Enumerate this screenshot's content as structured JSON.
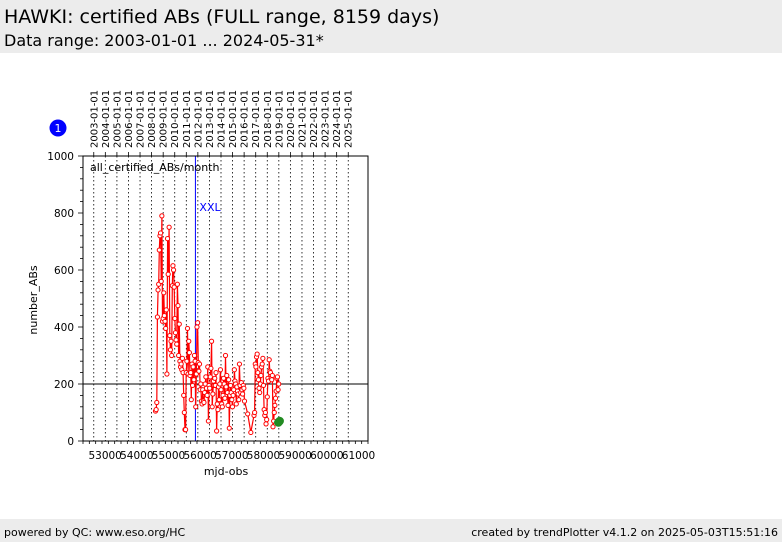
{
  "page": {
    "title": "HAWKI: certified ABs (FULL range, 8159 days)",
    "subtitle": "Data range: 2003-01-01 ... 2024-05-31*",
    "footer_left": "powered by QC: www.eso.org/HC",
    "footer_right": "created by trendPlotter v4.1.2 on 2025-05-03T15:51:16"
  },
  "colors": {
    "series": "#ff0000",
    "latest": "#228b22",
    "marker_line": "#0000ff",
    "reference_line": "#000000",
    "badge": "#0000ff"
  },
  "chart_data": {
    "type": "line",
    "xlabel": "mjd-obs",
    "ylabel": "number_ABs",
    "xlim": [
      52300,
      61300
    ],
    "ylim": [
      0,
      1000
    ],
    "x_ticks": [
      53000,
      54000,
      55000,
      56000,
      57000,
      58000,
      59000,
      60000,
      61000
    ],
    "y_ticks": [
      0,
      200,
      400,
      600,
      800,
      1000
    ],
    "grid": "vertical dotted lines at year boundaries",
    "top_axis": {
      "labels": [
        "2003-01-01",
        "2004-01-01",
        "2005-01-01",
        "2006-01-01",
        "2007-01-01",
        "2008-01-01",
        "2009-01-01",
        "2010-01-01",
        "2011-01-01",
        "2012-01-01",
        "2013-01-01",
        "2014-01-01",
        "2015-01-01",
        "2016-01-01",
        "2017-01-01",
        "2018-01-01",
        "2019-01-01",
        "2020-01-01",
        "2021-01-01",
        "2022-01-01",
        "2023-01-01",
        "2024-01-01",
        "2025-01-01"
      ],
      "mjd": [
        52640,
        53005,
        53371,
        53736,
        54101,
        54466,
        54832,
        55197,
        55562,
        55927,
        56293,
        56658,
        57023,
        57388,
        57754,
        58119,
        58484,
        58849,
        59215,
        59580,
        59945,
        60310,
        60676
      ]
    },
    "badge_label": "1",
    "series_label": "all_certified_ABs/month",
    "reference_line": 200,
    "event_marker": {
      "x": 55850,
      "label": "XXL"
    },
    "points": [
      [
        54590,
        105
      ],
      [
        54610,
        110
      ],
      [
        54630,
        135
      ],
      [
        54650,
        435
      ],
      [
        54670,
        530
      ],
      [
        54690,
        550
      ],
      [
        54710,
        670
      ],
      [
        54730,
        720
      ],
      [
        54750,
        730
      ],
      [
        54770,
        560
      ],
      [
        54790,
        790
      ],
      [
        54810,
        420
      ],
      [
        54830,
        430
      ],
      [
        54850,
        520
      ],
      [
        54870,
        440
      ],
      [
        54890,
        420
      ],
      [
        54910,
        395
      ],
      [
        54930,
        460
      ],
      [
        54950,
        235
      ],
      [
        54970,
        710
      ],
      [
        54990,
        585
      ],
      [
        55020,
        750
      ],
      [
        55040,
        370
      ],
      [
        55060,
        320
      ],
      [
        55080,
        350
      ],
      [
        55100,
        300
      ],
      [
        55120,
        545
      ],
      [
        55140,
        615
      ],
      [
        55160,
        600
      ],
      [
        55180,
        540
      ],
      [
        55200,
        430
      ],
      [
        55220,
        380
      ],
      [
        55240,
        355
      ],
      [
        55260,
        340
      ],
      [
        55280,
        550
      ],
      [
        55300,
        475
      ],
      [
        55320,
        300
      ],
      [
        55340,
        410
      ],
      [
        55360,
        280
      ],
      [
        55380,
        260
      ],
      [
        55400,
        270
      ],
      [
        55420,
        250
      ],
      [
        55440,
        290
      ],
      [
        55460,
        240
      ],
      [
        55480,
        160
      ],
      [
        55500,
        100
      ],
      [
        55520,
        40
      ],
      [
        55540,
        40
      ],
      [
        55560,
        240
      ],
      [
        55580,
        280
      ],
      [
        55600,
        395
      ],
      [
        55620,
        235
      ],
      [
        55640,
        350
      ],
      [
        55660,
        310
      ],
      [
        55680,
        230
      ],
      [
        55700,
        240
      ],
      [
        55720,
        145
      ],
      [
        55740,
        270
      ],
      [
        55760,
        195
      ],
      [
        55780,
        260
      ],
      [
        55800,
        215
      ],
      [
        55820,
        300
      ],
      [
        55840,
        280
      ],
      [
        55860,
        120
      ],
      [
        55880,
        235
      ],
      [
        55900,
        400
      ],
      [
        55920,
        415
      ],
      [
        55940,
        275
      ],
      [
        55960,
        245
      ],
      [
        55980,
        270
      ],
      [
        56000,
        180
      ],
      [
        56020,
        200
      ],
      [
        56040,
        140
      ],
      [
        56060,
        130
      ],
      [
        56080,
        180
      ],
      [
        56100,
        140
      ],
      [
        56120,
        135
      ],
      [
        56140,
        170
      ],
      [
        56160,
        200
      ],
      [
        56180,
        225
      ],
      [
        56200,
        185
      ],
      [
        56220,
        160
      ],
      [
        56240,
        260
      ],
      [
        56260,
        70
      ],
      [
        56280,
        195
      ],
      [
        56300,
        185
      ],
      [
        56320,
        225
      ],
      [
        56340,
        255
      ],
      [
        56360,
        350
      ],
      [
        56380,
        120
      ],
      [
        56400,
        165
      ],
      [
        56420,
        210
      ],
      [
        56440,
        195
      ],
      [
        56460,
        220
      ],
      [
        56480,
        195
      ],
      [
        56500,
        240
      ],
      [
        56520,
        35
      ],
      [
        56540,
        130
      ],
      [
        56560,
        110
      ],
      [
        56580,
        190
      ],
      [
        56600,
        145
      ],
      [
        56620,
        200
      ],
      [
        56640,
        250
      ],
      [
        56660,
        180
      ],
      [
        56680,
        130
      ],
      [
        56700,
        120
      ],
      [
        56720,
        160
      ],
      [
        56740,
        220
      ],
      [
        56760,
        200
      ],
      [
        56780,
        150
      ],
      [
        56800,
        300
      ],
      [
        56820,
        190
      ],
      [
        56840,
        230
      ],
      [
        56860,
        170
      ],
      [
        56880,
        125
      ],
      [
        56900,
        215
      ],
      [
        56920,
        45
      ],
      [
        56940,
        160
      ],
      [
        56960,
        195
      ],
      [
        56980,
        170
      ],
      [
        57000,
        145
      ],
      [
        57020,
        120
      ],
      [
        57040,
        160
      ],
      [
        57060,
        180
      ],
      [
        57080,
        250
      ],
      [
        57100,
        210
      ],
      [
        57120,
        200
      ],
      [
        57140,
        130
      ],
      [
        57160,
        190
      ],
      [
        57180,
        175
      ],
      [
        57200,
        165
      ],
      [
        57220,
        145
      ],
      [
        57240,
        270
      ],
      [
        57260,
        195
      ],
      [
        57280,
        170
      ],
      [
        57300,
        205
      ],
      [
        57320,
        180
      ],
      [
        57340,
        165
      ],
      [
        57360,
        195
      ],
      [
        57380,
        185
      ],
      [
        57400,
        140
      ],
      [
        57500,
        95
      ],
      [
        57600,
        30
      ],
      [
        57700,
        90
      ],
      [
        57720,
        100
      ],
      [
        57740,
        270
      ],
      [
        57760,
        260
      ],
      [
        57780,
        295
      ],
      [
        57800,
        305
      ],
      [
        57820,
        240
      ],
      [
        57840,
        215
      ],
      [
        57860,
        185
      ],
      [
        57880,
        170
      ],
      [
        57900,
        200
      ],
      [
        57920,
        230
      ],
      [
        57940,
        260
      ],
      [
        57960,
        270
      ],
      [
        57980,
        290
      ],
      [
        58000,
        195
      ],
      [
        58020,
        110
      ],
      [
        58040,
        90
      ],
      [
        58060,
        100
      ],
      [
        58080,
        60
      ],
      [
        58100,
        75
      ],
      [
        58120,
        155
      ],
      [
        58140,
        220
      ],
      [
        58160,
        210
      ],
      [
        58180,
        285
      ],
      [
        58200,
        245
      ],
      [
        58220,
        240
      ],
      [
        58240,
        220
      ],
      [
        58260,
        215
      ],
      [
        58280,
        230
      ],
      [
        58300,
        50
      ],
      [
        58320,
        70
      ],
      [
        58340,
        100
      ],
      [
        58360,
        125
      ],
      [
        58380,
        150
      ],
      [
        58400,
        175
      ],
      [
        58420,
        220
      ],
      [
        58440,
        225
      ],
      [
        58460,
        180
      ],
      [
        58480,
        200
      ]
    ],
    "latest_points": [
      [
        58470,
        65
      ],
      [
        58510,
        70
      ]
    ]
  }
}
